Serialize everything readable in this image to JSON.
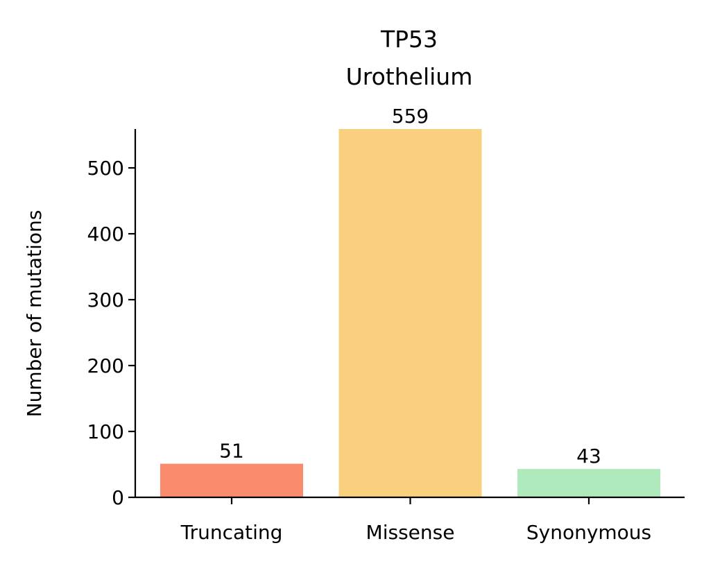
{
  "chart_data": {
    "type": "bar",
    "title": "TP53",
    "subtitle": "Urothelium",
    "xlabel": "",
    "ylabel": "Number of mutations",
    "categories": [
      "Truncating",
      "Missense",
      "Synonymous"
    ],
    "values": [
      51,
      559,
      43
    ],
    "data_labels": [
      "51",
      "559",
      "43"
    ],
    "colors": [
      "#fa8c6e",
      "#f8d07e",
      "#aeeabb"
    ],
    "ylim": [
      0,
      559
    ],
    "yticks": [
      0,
      100,
      200,
      300,
      400,
      500
    ],
    "ytick_labels": [
      "0",
      "100",
      "200",
      "300",
      "400",
      "500"
    ],
    "grid": false,
    "legend": "none"
  }
}
